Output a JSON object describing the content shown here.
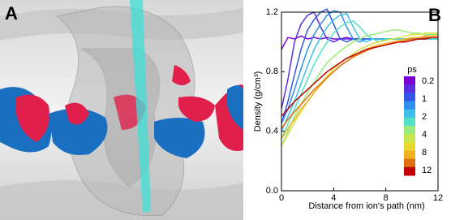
{
  "panels": {
    "a_label": "A",
    "b_label": "B"
  },
  "chart_data": {
    "type": "line",
    "xlabel": "Distance from ion's path (nm)",
    "ylabel": "Density (g/cm³)",
    "x": [
      0,
      0.5,
      1,
      1.5,
      2,
      2.5,
      3,
      3.5,
      4,
      4.5,
      5,
      5.5,
      6,
      6.5,
      7,
      7.5,
      8,
      8.5,
      9,
      9.5,
      10,
      10.5,
      11,
      11.5,
      12
    ],
    "xlim": [
      0,
      12
    ],
    "xticks": [
      0,
      4,
      8,
      12
    ],
    "ylim": [
      0,
      1.2
    ],
    "yticks": [
      {
        "value": 0,
        "label": "0.0"
      },
      0.4,
      0.8,
      1.2
    ],
    "series": [
      {
        "color": "#7a00d6",
        "values": [
          0.95,
          1.03,
          1.02,
          1.04,
          1.02,
          1.03,
          1.02,
          1.03,
          1.02,
          1.02,
          1.03,
          1.02,
          1.02,
          1.02,
          1.02,
          1.02,
          1.02,
          1.02,
          1.02,
          1.02,
          1.02,
          1.02,
          1.02,
          1.02,
          1.02
        ]
      },
      {
        "color": "#5a2ee0",
        "values": [
          0.55,
          0.75,
          1.0,
          1.12,
          1.18,
          1.2,
          1.1,
          1.02,
          1.0,
          1.02,
          1.02,
          1.02,
          1.02,
          1.02,
          1.02,
          1.02,
          1.02,
          1.02,
          1.02,
          1.02,
          1.02,
          1.02,
          1.02,
          1.02,
          1.02
        ]
      },
      {
        "color": "#3355e8",
        "values": [
          0.45,
          0.6,
          0.78,
          0.95,
          1.08,
          1.15,
          1.2,
          1.22,
          1.12,
          1.02,
          1.0,
          1.02,
          1.02,
          1.02,
          1.02,
          1.02,
          1.02,
          1.02,
          1.02,
          1.02,
          1.02,
          1.02,
          1.02,
          1.02,
          1.02
        ]
      },
      {
        "color": "#2f8ef0",
        "values": [
          0.45,
          0.55,
          0.68,
          0.82,
          0.95,
          1.05,
          1.12,
          1.18,
          1.21,
          1.2,
          1.1,
          1.02,
          1.0,
          1.02,
          1.02,
          1.02,
          1.02,
          1.02,
          1.02,
          1.02,
          1.02,
          1.02,
          1.02,
          1.02,
          1.02
        ]
      },
      {
        "color": "#3fbfe8",
        "values": [
          0.4,
          0.5,
          0.6,
          0.72,
          0.84,
          0.95,
          1.03,
          1.1,
          1.15,
          1.18,
          1.19,
          1.1,
          1.02,
          1.0,
          1.02,
          1.02,
          1.02,
          1.02,
          1.02,
          1.02,
          1.02,
          1.02,
          1.02,
          1.02,
          1.02
        ]
      },
      {
        "color": "#55e0c8",
        "values": [
          0.35,
          0.45,
          0.55,
          0.65,
          0.75,
          0.85,
          0.93,
          1.0,
          1.06,
          1.1,
          1.13,
          1.14,
          1.1,
          1.05,
          1.02,
          1.0,
          1.02,
          1.02,
          1.02,
          1.02,
          1.02,
          1.02,
          1.02,
          1.02,
          1.02
        ]
      },
      {
        "color": "#9aeb7a",
        "values": [
          0.3,
          0.4,
          0.5,
          0.58,
          0.66,
          0.73,
          0.8,
          0.86,
          0.9,
          0.94,
          0.97,
          1.0,
          1.02,
          1.04,
          1.05,
          1.06,
          1.07,
          1.08,
          1.08,
          1.07,
          1.06,
          1.06,
          1.05,
          1.05,
          1.05
        ]
      },
      {
        "color": "#d8e040",
        "values": [
          0.3,
          0.38,
          0.46,
          0.53,
          0.6,
          0.66,
          0.72,
          0.77,
          0.82,
          0.86,
          0.89,
          0.92,
          0.95,
          0.97,
          0.99,
          1.0,
          1.01,
          1.02,
          1.03,
          1.04,
          1.05,
          1.05,
          1.06,
          1.06,
          1.06
        ]
      },
      {
        "color": "#f0b020",
        "values": [
          0.35,
          0.42,
          0.48,
          0.55,
          0.6,
          0.66,
          0.71,
          0.76,
          0.8,
          0.84,
          0.87,
          0.9,
          0.93,
          0.95,
          0.97,
          0.98,
          0.99,
          1.0,
          1.01,
          1.02,
          1.03,
          1.03,
          1.04,
          1.04,
          1.04
        ]
      },
      {
        "color": "#e07010",
        "values": [
          0.42,
          0.48,
          0.53,
          0.58,
          0.63,
          0.68,
          0.72,
          0.76,
          0.8,
          0.84,
          0.87,
          0.9,
          0.92,
          0.94,
          0.96,
          0.97,
          0.98,
          0.99,
          1.0,
          1.01,
          1.02,
          1.02,
          1.03,
          1.03,
          1.03
        ]
      },
      {
        "color": "#c00000",
        "values": [
          0.5,
          0.55,
          0.6,
          0.64,
          0.68,
          0.72,
          0.76,
          0.8,
          0.83,
          0.86,
          0.89,
          0.91,
          0.93,
          0.95,
          0.96,
          0.97,
          0.98,
          0.99,
          1.0,
          1.0,
          1.01,
          1.02,
          1.02,
          1.03,
          1.03
        ]
      }
    ],
    "colorbar": {
      "title": "ps",
      "colors": [
        "#7a00d6",
        "#5a2ee0",
        "#3355e8",
        "#2f8ef0",
        "#3fbfe8",
        "#55e0c8",
        "#9aeb7a",
        "#c8e850",
        "#e8d830",
        "#f0b020",
        "#e07010",
        "#c00000"
      ],
      "ticks": [
        {
          "value": 0.2,
          "label": "0.2",
          "color": "#7a00d6"
        },
        {
          "value": 1,
          "label": "1",
          "color": "#2f6ef0"
        },
        {
          "value": 2,
          "label": "2",
          "color": "#7fd8e8"
        },
        {
          "value": 4,
          "label": "4",
          "color": "#b8e040"
        },
        {
          "value": 8,
          "label": "8",
          "color": "#f0b020"
        },
        {
          "value": 12,
          "label": "12",
          "color": "#c00000"
        }
      ]
    }
  }
}
